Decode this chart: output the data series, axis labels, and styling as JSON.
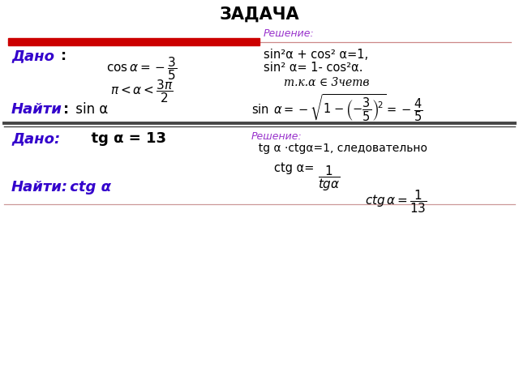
{
  "title": "ЗАДАЧА",
  "bg_color": "#ffffff",
  "blue_color": "#3300cc",
  "purple_color": "#9933cc",
  "red_color": "#cc0000",
  "black_color": "#000000",
  "gray_color": "#888888",
  "dark_gray": "#444444",
  "section1": {
    "dado_label": "Дано",
    "dado_colon": ":",
    "cos_formula": "$\\cos\\alpha = -\\dfrac{3}{5}$",
    "pi_formula": "$\\pi < \\alpha < \\dfrac{3\\pi}{2}$",
    "najti_label": "Найти",
    "najti_colon": ":",
    "najti_value": " sin α",
    "reshenie_label": "Решение:",
    "reshenie_line1": "sin²α + cos² α=1,",
    "reshenie_line2": "sin² α= 1- cos²α.",
    "reshenie_italic": "$m.\\kappa.\\alpha \\in 3\\!четв$",
    "sin_formula": "$\\sin\\;\\alpha = -\\sqrt{1-\\left(-\\dfrac{3}{5}\\right)^{\\!2}} = -\\dfrac{4}{5}$"
  },
  "section2": {
    "dado_label": "Дано:",
    "dado_value": "  tg α = 13",
    "reshenie_label": "Решение:",
    "reshenie_line1": "  tg α ·ctgα=1, следовательно",
    "ctg_text": "ctg α= ",
    "ctg_formula": "$\\dfrac{1}{tg\\alpha}$",
    "najti_label": "Найти:",
    "najti_value": " ctg α",
    "ctg_result": "$ctg\\,\\alpha = \\dfrac{1}{13}$"
  }
}
